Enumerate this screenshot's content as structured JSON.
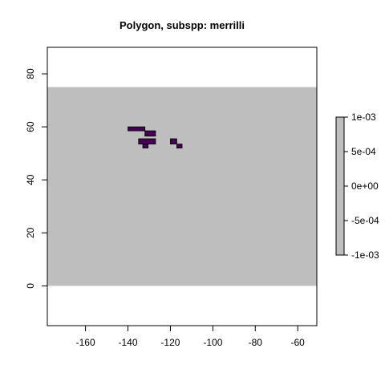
{
  "title": "Polygon, subspp: merrilli",
  "colors": {
    "background_raster": "#bebebe",
    "polygon_fill": "#440154",
    "polygon_border": "#000000",
    "frame": "#000000"
  },
  "chart_data": {
    "type": "heatmap",
    "title": "Polygon, subspp: merrilli",
    "xlabel": "",
    "ylabel": "",
    "xlim": [
      -178,
      -51
    ],
    "ylim": [
      -15,
      90
    ],
    "x_ticks": [
      -160,
      -140,
      -120,
      -100,
      -80,
      -60
    ],
    "y_ticks": [
      0,
      20,
      40,
      60,
      80
    ],
    "x_tick_labels": [
      "-160",
      "-140",
      "-120",
      "-100",
      "-80",
      "-60"
    ],
    "y_tick_labels": [
      "0",
      "20",
      "40",
      "60",
      "80"
    ],
    "raster_extent": {
      "xmin": -178,
      "xmax": -51,
      "ymin": 0,
      "ymax": 75
    },
    "cells": [
      {
        "xmin": -140,
        "xmax": -132,
        "ymin": 58.5,
        "ymax": 60
      },
      {
        "xmin": -132,
        "xmax": -127,
        "ymin": 56.5,
        "ymax": 58.5
      },
      {
        "xmin": -135,
        "xmax": -127,
        "ymin": 53.5,
        "ymax": 55.5
      },
      {
        "xmin": -133,
        "xmax": -130.5,
        "ymin": 52,
        "ymax": 53.5
      },
      {
        "xmin": -120,
        "xmax": -117,
        "ymin": 53.5,
        "ymax": 55.5
      },
      {
        "xmin": -117,
        "xmax": -114.5,
        "ymin": 52,
        "ymax": 53.5
      }
    ],
    "legend": {
      "placement": "right",
      "ticks": [
        -0.001,
        -0.0005,
        0,
        0.0005,
        0.001
      ],
      "tick_labels": [
        "-1e-03",
        "-5e-04",
        "0e+00",
        "5e-04",
        "1e-03"
      ]
    }
  }
}
